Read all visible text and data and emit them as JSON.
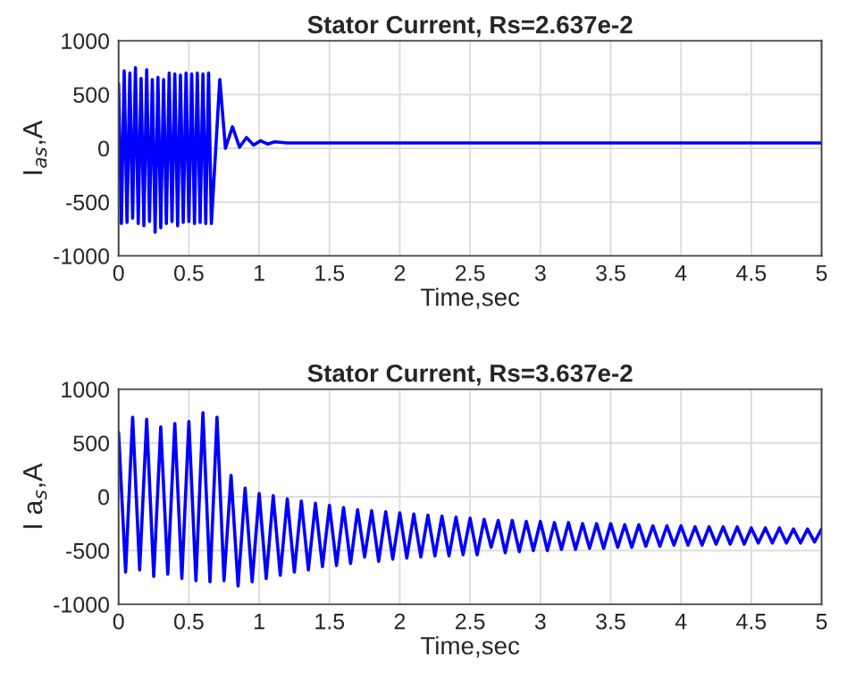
{
  "chart_data": [
    {
      "type": "line",
      "title": "Stator Current, Rs=2.637e-2",
      "xlabel": "Time,sec",
      "ylabel": "I$_{as}$,A",
      "xlim": [
        0,
        5
      ],
      "ylim": [
        -1000,
        1000
      ],
      "xticks": [
        0,
        0.5,
        1,
        1.5,
        2,
        2.5,
        3,
        3.5,
        4,
        4.5,
        5
      ],
      "yticks": [
        -1000,
        -500,
        0,
        500,
        1000
      ],
      "grid": true,
      "marker": "none",
      "line_style": "solid",
      "series": [
        {
          "color": "#0000ff",
          "x": [
            0,
            0.02,
            0.04,
            0.06,
            0.08,
            0.1,
            0.12,
            0.14,
            0.16,
            0.18,
            0.2,
            0.22,
            0.24,
            0.26,
            0.28,
            0.3,
            0.32,
            0.34,
            0.36,
            0.38,
            0.4,
            0.42,
            0.44,
            0.46,
            0.48,
            0.5,
            0.52,
            0.54,
            0.56,
            0.58,
            0.6,
            0.62,
            0.64,
            0.66,
            0.72,
            0.76,
            0.81,
            0.86,
            0.91,
            0.96,
            1.01,
            1.06,
            1.11,
            1.2,
            5
          ],
          "values": [
            600,
            -700,
            720,
            -690,
            700,
            -650,
            750,
            -700,
            650,
            -720,
            730,
            -680,
            640,
            -780,
            660,
            -740,
            640,
            -700,
            700,
            -680,
            690,
            -720,
            680,
            -690,
            700,
            -680,
            690,
            -700,
            700,
            -690,
            690,
            -700,
            700,
            -700,
            640,
            0,
            200,
            10,
            100,
            30,
            70,
            40,
            60,
            50,
            50
          ]
        }
      ]
    },
    {
      "type": "line",
      "title": "Stator Current, Rs=3.637e-2",
      "xlabel": "Time,sec",
      "ylabel": "I a$_{s}$,A",
      "xlim": [
        0,
        5
      ],
      "ylim": [
        -1000,
        1000
      ],
      "xticks": [
        0,
        0.5,
        1,
        1.5,
        2,
        2.5,
        3,
        3.5,
        4,
        4.5,
        5
      ],
      "yticks": [
        -1000,
        -500,
        0,
        500,
        1000
      ],
      "grid": true,
      "marker": "none",
      "line_style": "solid",
      "series": [
        {
          "color": "#0000ff",
          "x": [
            0,
            0.05,
            0.1,
            0.15,
            0.2,
            0.25,
            0.3,
            0.35,
            0.4,
            0.45,
            0.5,
            0.55,
            0.6,
            0.65,
            0.7,
            0.75,
            0.8,
            0.85,
            0.9,
            0.95,
            1,
            1.05,
            1.1,
            1.15,
            1.2,
            1.25,
            1.3,
            1.35,
            1.4,
            1.45,
            1.5,
            1.55,
            1.6,
            1.65,
            1.7,
            1.75,
            1.8,
            1.85,
            1.9,
            1.95,
            2,
            2.05,
            2.1,
            2.15,
            2.2,
            2.25,
            2.3,
            2.35,
            2.4,
            2.45,
            2.5,
            2.55,
            2.6,
            2.65,
            2.7,
            2.75,
            2.8,
            2.85,
            2.9,
            2.95,
            3,
            3.05,
            3.1,
            3.15,
            3.2,
            3.25,
            3.3,
            3.35,
            3.4,
            3.45,
            3.5,
            3.55,
            3.6,
            3.65,
            3.7,
            3.75,
            3.8,
            3.85,
            3.9,
            3.95,
            4,
            4.05,
            4.1,
            4.15,
            4.2,
            4.25,
            4.3,
            4.35,
            4.4,
            4.45,
            4.5,
            4.55,
            4.6,
            4.65,
            4.7,
            4.75,
            4.8,
            4.85,
            4.9,
            4.95,
            5
          ],
          "values": [
            600,
            -700,
            740,
            -680,
            720,
            -740,
            650,
            -720,
            680,
            -760,
            700,
            -780,
            780,
            -790,
            740,
            -780,
            200,
            -830,
            80,
            -790,
            30,
            -760,
            10,
            -730,
            -20,
            -700,
            -40,
            -680,
            -60,
            -650,
            -80,
            -640,
            -100,
            -620,
            -120,
            -560,
            -130,
            -600,
            -140,
            -580,
            -150,
            -570,
            -160,
            -560,
            -170,
            -550,
            -180,
            -550,
            -190,
            -540,
            -200,
            -540,
            -210,
            -470,
            -220,
            -520,
            -220,
            -510,
            -230,
            -500,
            -230,
            -500,
            -240,
            -490,
            -240,
            -490,
            -250,
            -480,
            -250,
            -480,
            -250,
            -470,
            -260,
            -470,
            -260,
            -460,
            -270,
            -460,
            -270,
            -450,
            -270,
            -450,
            -280,
            -450,
            -280,
            -440,
            -280,
            -440,
            -280,
            -440,
            -290,
            -430,
            -290,
            -430,
            -290,
            -430,
            -300,
            -430,
            -300,
            -420,
            -300
          ]
        }
      ]
    }
  ]
}
